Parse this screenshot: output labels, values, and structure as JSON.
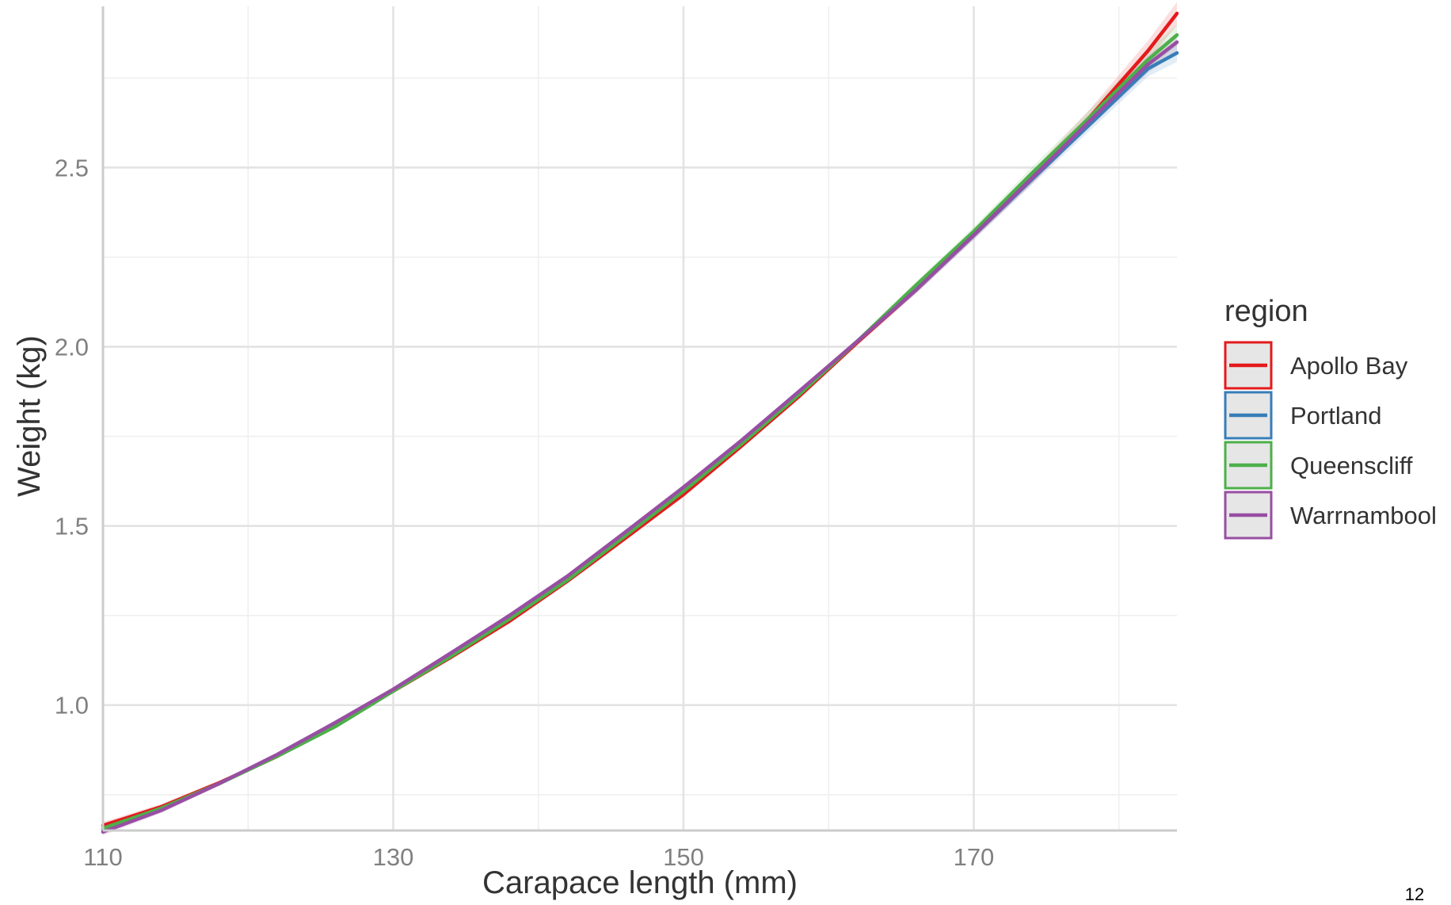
{
  "page_number": "12",
  "chart_data": {
    "type": "line",
    "title": "",
    "xlabel": "Carapace length (mm)",
    "ylabel": "Weight (kg)",
    "xlim": [
      110,
      184
    ],
    "ylim": [
      0.65,
      2.95
    ],
    "x_ticks": [
      110,
      130,
      150,
      170
    ],
    "y_ticks": [
      1.0,
      1.5,
      2.0,
      2.5
    ],
    "x_tick_labels": [
      "110",
      "130",
      "150",
      "170"
    ],
    "y_tick_labels": [
      "1.0",
      "1.5",
      "2.0",
      "2.5"
    ],
    "grid": true,
    "legend": {
      "title": "region",
      "placement": "right"
    },
    "x": [
      110,
      114,
      118,
      122,
      126,
      130,
      134,
      138,
      142,
      146,
      150,
      154,
      158,
      162,
      166,
      170,
      174,
      178,
      182,
      184
    ],
    "series": [
      {
        "name": "Apollo Bay",
        "color": "#e41a1c",
        "values": [
          0.664,
          0.716,
          0.783,
          0.857,
          0.945,
          1.039,
          1.134,
          1.234,
          1.346,
          1.466,
          1.588,
          1.723,
          1.863,
          2.013,
          2.158,
          2.313,
          2.471,
          2.641,
          2.826,
          2.93
        ],
        "band_halfwidth": [
          0.01,
          0.008,
          0.006,
          0.005,
          0.005,
          0.005,
          0.005,
          0.005,
          0.005,
          0.005,
          0.006,
          0.006,
          0.007,
          0.008,
          0.01,
          0.013,
          0.017,
          0.022,
          0.028,
          0.032
        ]
      },
      {
        "name": "Portland",
        "color": "#377eb8",
        "values": [
          0.651,
          0.709,
          0.781,
          0.859,
          0.949,
          1.043,
          1.14,
          1.24,
          1.356,
          1.476,
          1.601,
          1.732,
          1.874,
          2.016,
          2.158,
          2.311,
          2.467,
          2.621,
          2.776,
          2.82
        ],
        "band_halfwidth": [
          0.01,
          0.008,
          0.006,
          0.005,
          0.005,
          0.005,
          0.005,
          0.005,
          0.005,
          0.005,
          0.006,
          0.006,
          0.007,
          0.008,
          0.01,
          0.012,
          0.015,
          0.018,
          0.022,
          0.025
        ]
      },
      {
        "name": "Queenscliff",
        "color": "#4daf4a",
        "values": [
          0.656,
          0.712,
          0.781,
          0.857,
          0.94,
          1.039,
          1.137,
          1.24,
          1.349,
          1.473,
          1.597,
          1.729,
          1.868,
          2.016,
          2.171,
          2.322,
          2.484,
          2.641,
          2.801,
          2.87
        ],
        "band_halfwidth": [
          0.01,
          0.008,
          0.006,
          0.005,
          0.005,
          0.005,
          0.005,
          0.005,
          0.005,
          0.005,
          0.006,
          0.006,
          0.007,
          0.008,
          0.01,
          0.013,
          0.017,
          0.021,
          0.026,
          0.03
        ]
      },
      {
        "name": "Warrnambool",
        "color": "#984ea3",
        "values": [
          0.646,
          0.706,
          0.781,
          0.862,
          0.951,
          1.044,
          1.146,
          1.25,
          1.36,
          1.483,
          1.608,
          1.739,
          1.877,
          2.016,
          2.158,
          2.312,
          2.471,
          2.631,
          2.788,
          2.85
        ],
        "band_halfwidth": [
          0.01,
          0.008,
          0.006,
          0.005,
          0.005,
          0.005,
          0.005,
          0.005,
          0.005,
          0.005,
          0.006,
          0.006,
          0.007,
          0.008,
          0.01,
          0.012,
          0.015,
          0.019,
          0.024,
          0.027
        ]
      }
    ]
  }
}
